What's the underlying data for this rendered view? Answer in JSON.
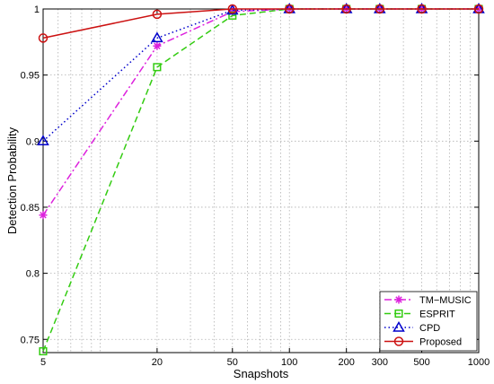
{
  "chart_data": {
    "type": "line",
    "xlabel": "Snapshots",
    "ylabel": "Detection Probability",
    "xscale": "log",
    "xlim": [
      5,
      1000
    ],
    "ylim": [
      0.74,
      1.0
    ],
    "grid": true,
    "legend_position": "bottom-right",
    "x": [
      5,
      20,
      50,
      100,
      200,
      300,
      500,
      1000
    ],
    "x_tick_labels": [
      "5",
      "20",
      "50",
      "100",
      "200",
      "300",
      "500",
      "1000"
    ],
    "y_ticks": [
      0.75,
      0.8,
      0.85,
      0.9,
      0.95,
      1.0
    ],
    "y_tick_labels": [
      "0.75",
      "0.8",
      "0.85",
      "0.9",
      "0.95",
      "1"
    ],
    "series": [
      {
        "name": "TM−MUSIC",
        "color": "#dd22dd",
        "dash": "dashdot",
        "marker": "asterisk",
        "values": [
          0.844,
          0.972,
          0.998,
          1.0,
          1.0,
          1.0,
          1.0,
          1.0
        ]
      },
      {
        "name": "ESPRIT",
        "color": "#33cc11",
        "dash": "dashed",
        "marker": "square",
        "values": [
          0.741,
          0.956,
          0.995,
          1.0,
          1.0,
          1.0,
          1.0,
          1.0
        ]
      },
      {
        "name": "CPD",
        "color": "#0000cc",
        "dash": "dotted",
        "marker": "triangle",
        "values": [
          0.9,
          0.978,
          0.999,
          1.0,
          1.0,
          1.0,
          1.0,
          1.0
        ]
      },
      {
        "name": "Proposed",
        "color": "#cc1111",
        "dash": "solid",
        "marker": "circle",
        "values": [
          0.978,
          0.996,
          1.0,
          1.0,
          1.0,
          1.0,
          1.0,
          1.0
        ]
      }
    ]
  }
}
